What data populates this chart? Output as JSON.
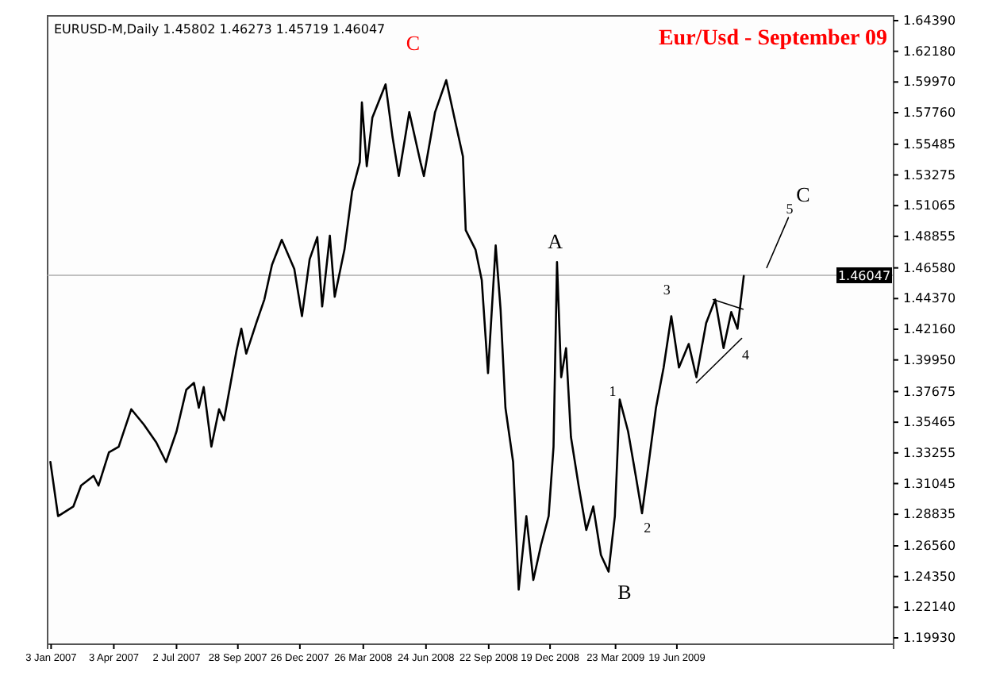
{
  "chart_data": {
    "type": "line",
    "title": "Eur/Usd - September 09",
    "xlim": [
      "2006-12-29",
      "2010-04-26"
    ],
    "xticks": [
      {
        "value": "2007-01-03",
        "label": "3 Jan 2007"
      },
      {
        "value": "2007-04-03",
        "label": "3 Apr 2007"
      },
      {
        "value": "2007-07-02",
        "label": "2 Jul 2007"
      },
      {
        "value": "2007-09-28",
        "label": "28 Sep 2007"
      },
      {
        "value": "2007-12-26",
        "label": "26 Dec 2007"
      },
      {
        "value": "2008-03-26",
        "label": "26 Mar 2008"
      },
      {
        "value": "2008-06-24",
        "label": "24 Jun 2008"
      },
      {
        "value": "2008-09-22",
        "label": "22 Sep 2008"
      },
      {
        "value": "2008-12-19",
        "label": "19 Dec 2008"
      },
      {
        "value": "2009-03-23",
        "label": "23 Mar 2009"
      },
      {
        "value": "2009-06-19",
        "label": "19 Jun 2009"
      }
    ],
    "ylim": [
      1.1993,
      1.6439
    ],
    "yticks": [
      {
        "value": 1.6439,
        "label": "1.64390"
      },
      {
        "value": 1.6218,
        "label": "1.62180"
      },
      {
        "value": 1.5997,
        "label": "1.59970"
      },
      {
        "value": 1.5776,
        "label": "1.57760"
      },
      {
        "value": 1.55485,
        "label": "1.55485"
      },
      {
        "value": 1.53275,
        "label": "1.53275"
      },
      {
        "value": 1.51065,
        "label": "1.51065"
      },
      {
        "value": 1.48855,
        "label": "1.48855"
      },
      {
        "value": 1.4658,
        "label": "1.46580"
      },
      {
        "value": 1.4437,
        "label": "1.44370"
      },
      {
        "value": 1.4216,
        "label": "1.42160"
      },
      {
        "value": 1.3995,
        "label": "1.39950"
      },
      {
        "value": 1.37675,
        "label": "1.37675"
      },
      {
        "value": 1.35465,
        "label": "1.35465"
      },
      {
        "value": 1.33255,
        "label": "1.33255"
      },
      {
        "value": 1.31045,
        "label": "1.31045"
      },
      {
        "value": 1.28835,
        "label": "1.28835"
      },
      {
        "value": 1.2656,
        "label": "1.26560"
      },
      {
        "value": 1.2435,
        "label": "1.24350"
      },
      {
        "value": 1.2214,
        "label": "1.22140"
      },
      {
        "value": 1.1993,
        "label": "1.19930"
      }
    ],
    "series": [
      {
        "color": "#000000",
        "x": [
          "2007-01-02",
          "2007-01-13",
          "2007-02-04",
          "2007-02-15",
          "2007-03-05",
          "2007-03-12",
          "2007-03-27",
          "2007-04-10",
          "2007-04-28",
          "2007-05-16",
          "2007-06-03",
          "2007-06-17",
          "2007-07-02",
          "2007-07-16",
          "2007-07-27",
          "2007-08-03",
          "2007-08-10",
          "2007-08-21",
          "2007-09-01",
          "2007-09-08",
          "2007-09-26",
          "2007-10-03",
          "2007-10-10",
          "2007-10-25",
          "2007-11-05",
          "2007-11-16",
          "2007-11-30",
          "2007-12-18",
          "2007-12-29",
          "2008-01-09",
          "2008-01-20",
          "2008-01-27",
          "2008-02-07",
          "2008-02-14",
          "2008-02-28",
          "2008-03-10",
          "2008-03-21",
          "2008-03-24",
          "2008-03-31",
          "2008-04-08",
          "2008-04-27",
          "2008-05-07",
          "2008-05-16",
          "2008-05-31",
          "2008-06-16",
          "2008-06-21",
          "2008-07-07",
          "2008-07-23",
          "2008-08-05",
          "2008-08-16",
          "2008-08-20",
          "2008-09-03",
          "2008-09-12",
          "2008-09-21",
          "2008-10-02",
          "2008-10-09",
          "2008-10-16",
          "2008-10-27",
          "2008-11-04",
          "2008-11-15",
          "2008-11-25",
          "2008-12-06",
          "2008-12-17",
          "2008-12-24",
          "2008-12-29",
          "2009-01-04",
          "2009-01-11",
          "2009-01-18",
          "2009-01-29",
          "2009-02-09",
          "2009-02-19",
          "2009-03-02",
          "2009-03-13",
          "2009-03-22",
          "2009-03-29",
          "2009-04-10",
          "2009-04-21",
          "2009-04-30",
          "2009-05-09",
          "2009-05-20",
          "2009-05-31",
          "2009-06-11",
          "2009-06-22",
          "2009-07-06",
          "2009-07-17",
          "2009-07-31",
          "2009-08-13",
          "2009-08-25",
          "2009-09-05",
          "2009-09-14",
          "2009-09-23"
        ],
        "values": [
          1.326,
          1.287,
          1.294,
          1.309,
          1.316,
          1.309,
          1.333,
          1.337,
          1.364,
          1.353,
          1.34,
          1.326,
          1.348,
          1.378,
          1.383,
          1.365,
          1.38,
          1.337,
          1.364,
          1.356,
          1.406,
          1.422,
          1.404,
          1.427,
          1.443,
          1.468,
          1.486,
          1.465,
          1.431,
          1.472,
          1.488,
          1.438,
          1.489,
          1.445,
          1.479,
          1.521,
          1.542,
          1.585,
          1.539,
          1.574,
          1.598,
          1.56,
          1.532,
          1.578,
          1.542,
          1.532,
          1.578,
          1.601,
          1.571,
          1.546,
          1.493,
          1.479,
          1.457,
          1.39,
          1.482,
          1.436,
          1.365,
          1.326,
          1.234,
          1.287,
          1.241,
          1.266,
          1.287,
          1.337,
          1.47,
          1.387,
          1.408,
          1.344,
          1.309,
          1.277,
          1.294,
          1.259,
          1.247,
          1.287,
          1.371,
          1.348,
          1.316,
          1.289,
          1.323,
          1.365,
          1.394,
          1.431,
          1.394,
          1.411,
          1.387,
          1.426,
          1.443,
          1.408,
          1.434,
          1.422,
          1.46
        ]
      },
      {
        "color": "#000000",
        "x": [
          "2009-08-10",
          "2009-09-22"
        ],
        "values": [
          1.443,
          1.436
        ]
      },
      {
        "color": "#000000",
        "x": [
          "2009-07-17",
          "2009-09-20"
        ],
        "values": [
          1.383,
          1.415
        ]
      },
      {
        "color": "#000000",
        "x": [
          "2009-10-26",
          "2009-11-26"
        ],
        "values": [
          1.466,
          1.502
        ]
      }
    ],
    "ref_lines": [
      {
        "axis": "y",
        "value": 1.46047,
        "label": "1.46047",
        "color": "#c0c0c0"
      }
    ],
    "annotations": [
      "EURUSD-M,Daily  1.45802 1.46273 1.45719 1.46047",
      "C",
      "A",
      "B",
      "1",
      "2",
      "3",
      "4",
      "5",
      "C"
    ]
  }
}
